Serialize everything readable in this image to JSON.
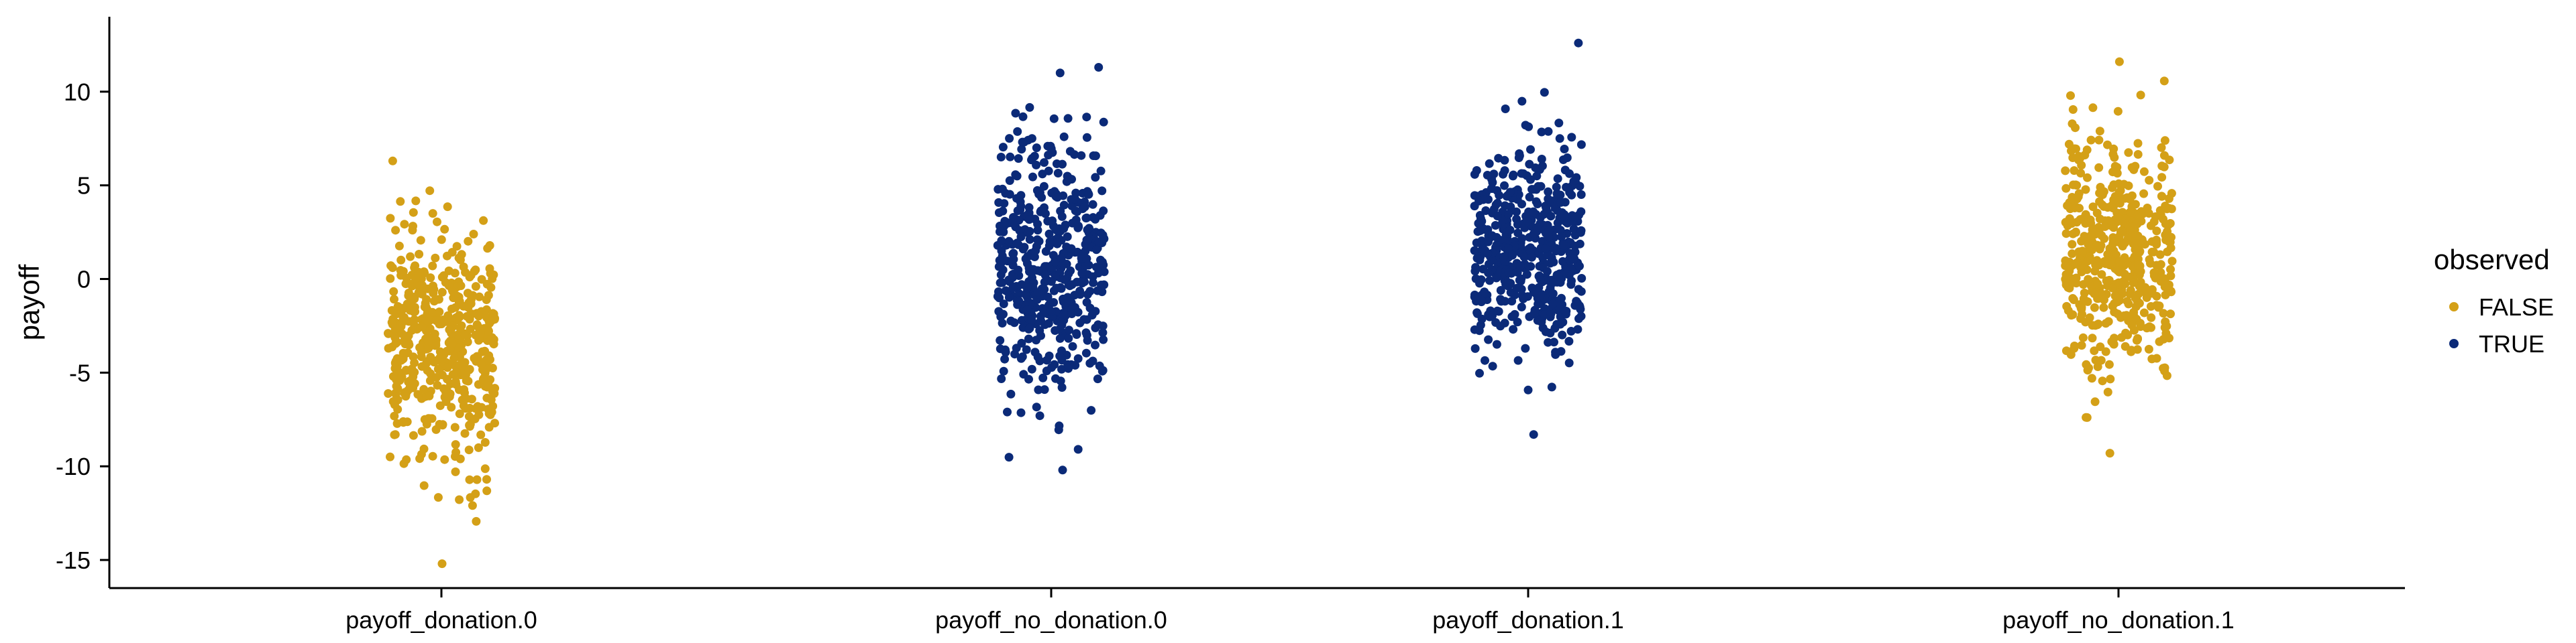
{
  "chart_data": {
    "type": "scatter",
    "subtype": "jitter-strip",
    "title": "",
    "xlabel": "",
    "ylabel": "payoff",
    "ylim": [
      -16.5,
      14
    ],
    "yticks": [
      10,
      5,
      0,
      -5,
      -10,
      -15
    ],
    "ytick_labels": [
      "10",
      "5",
      "0",
      "-5",
      "-10",
      "-15"
    ],
    "grid": false,
    "categories": [
      "payoff_donation.0",
      "payoff_no_donation.0",
      "payoff_donation.1",
      "payoff_no_donation.1"
    ],
    "legend": {
      "title": "observed",
      "placement": "right",
      "entries": [
        {
          "label": "FALSE",
          "color": "#D4A017"
        },
        {
          "label": "TRUE",
          "color": "#0B2A78"
        }
      ]
    },
    "groups": [
      {
        "category": "payoff_donation.0",
        "observed": "FALSE",
        "color": "#D4A017",
        "n_points": 500,
        "center": -3.5,
        "spread": 3.0,
        "min": -15.2,
        "max": 6.3
      },
      {
        "category": "payoff_no_donation.0",
        "observed": "TRUE",
        "color": "#0B2A78",
        "n_points": 500,
        "center": 0.8,
        "spread": 3.4,
        "min": -10.2,
        "max": 11.3
      },
      {
        "category": "payoff_donation.1",
        "observed": "TRUE",
        "color": "#0B2A78",
        "n_points": 500,
        "center": 1.6,
        "spread": 2.8,
        "min": -8.3,
        "max": 12.6
      },
      {
        "category": "payoff_no_donation.1",
        "observed": "FALSE",
        "color": "#D4A017",
        "n_points": 500,
        "center": 1.2,
        "spread": 3.2,
        "min": -9.3,
        "max": 11.6
      }
    ]
  }
}
